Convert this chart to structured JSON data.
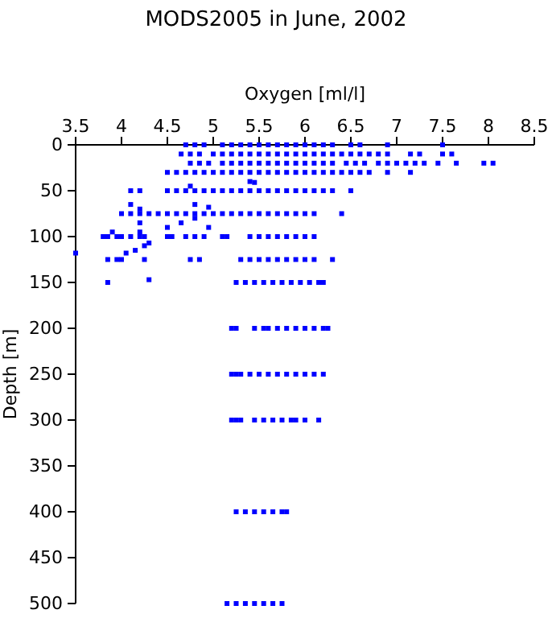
{
  "chart_data": {
    "type": "scatter",
    "title": "MODS2005 in June, 2002",
    "xlabel": "Oxygen [ml/l]",
    "ylabel": "Depth [m]",
    "xlim": [
      3.5,
      8.5
    ],
    "xticks": [
      3.5,
      4,
      4.5,
      5,
      5.5,
      6,
      6.5,
      7,
      7.5,
      8,
      8.5
    ],
    "ylim": [
      500,
      0
    ],
    "yticks": [
      0,
      50,
      100,
      150,
      200,
      250,
      300,
      350,
      400,
      450,
      500
    ],
    "marker": "square",
    "series": [
      {
        "color": "#0000ff",
        "x": [
          4.7,
          4.8,
          4.9,
          5.1,
          5.2,
          5.3,
          5.4,
          5.5,
          5.6,
          5.7,
          5.8,
          5.9,
          6.0,
          6.1,
          6.2,
          6.3,
          6.5,
          6.6,
          6.9,
          7.5
        ],
        "values": [
          0,
          0,
          0,
          0,
          0,
          0,
          0,
          0,
          0,
          0,
          0,
          0,
          0,
          0,
          0,
          0,
          0,
          0,
          0,
          0
        ]
      },
      {
        "color": "#0000ff",
        "x": [
          4.65,
          4.75,
          4.85,
          5.0,
          5.1,
          5.2,
          5.3,
          5.4,
          5.5,
          5.6,
          5.7,
          5.8,
          5.9,
          6.0,
          6.1,
          6.2,
          6.3,
          6.4,
          6.5,
          6.6,
          6.7,
          6.8,
          6.9,
          7.15,
          7.25,
          7.5,
          7.6
        ],
        "values": [
          10,
          10,
          10,
          10,
          10,
          10,
          10,
          10,
          10,
          10,
          10,
          10,
          10,
          10,
          10,
          10,
          10,
          10,
          10,
          10,
          10,
          10,
          10,
          10,
          10,
          10,
          10
        ]
      },
      {
        "color": "#0000ff",
        "x": [
          4.75,
          4.85,
          4.95,
          5.1,
          5.2,
          5.3,
          5.4,
          5.5,
          5.6,
          5.7,
          5.8,
          5.9,
          6.0,
          6.1,
          6.2,
          6.3,
          6.45,
          6.55,
          6.65,
          6.8,
          6.9,
          7.0,
          7.1,
          7.2,
          7.3,
          7.45,
          7.65,
          7.95,
          8.05
        ],
        "values": [
          20,
          20,
          20,
          20,
          20,
          20,
          20,
          20,
          20,
          20,
          20,
          20,
          20,
          20,
          20,
          20,
          20,
          20,
          20,
          20,
          20,
          20,
          20,
          20,
          20,
          20,
          20,
          20,
          20
        ]
      },
      {
        "color": "#0000ff",
        "x": [
          4.5,
          4.6,
          4.7,
          4.8,
          4.9,
          5.0,
          5.1,
          5.2,
          5.3,
          5.4,
          5.5,
          5.6,
          5.7,
          5.8,
          5.9,
          6.0,
          6.1,
          6.2,
          6.3,
          6.4,
          6.5,
          6.6,
          6.7,
          6.9,
          7.15
        ],
        "values": [
          30,
          30,
          30,
          30,
          30,
          30,
          30,
          30,
          30,
          30,
          30,
          30,
          30,
          30,
          30,
          30,
          30,
          30,
          30,
          30,
          30,
          30,
          30,
          30,
          30
        ]
      },
      {
        "color": "#0000ff",
        "x": [
          5.4,
          5.45,
          4.75
        ],
        "values": [
          40,
          41,
          45
        ]
      },
      {
        "color": "#0000ff",
        "x": [
          4.1,
          4.2,
          4.5,
          4.6,
          4.7,
          4.8,
          4.9,
          5.0,
          5.1,
          5.2,
          5.3,
          5.4,
          5.5,
          5.6,
          5.7,
          5.8,
          5.9,
          6.0,
          6.1,
          6.2,
          6.3,
          6.5
        ],
        "values": [
          50,
          50,
          50,
          50,
          50,
          50,
          50,
          50,
          50,
          50,
          50,
          50,
          50,
          50,
          50,
          50,
          50,
          50,
          50,
          50,
          50,
          50
        ]
      },
      {
        "color": "#0000ff",
        "x": [
          4.0,
          4.1,
          4.2,
          4.3,
          4.4,
          4.5,
          4.6,
          4.7,
          4.8,
          4.9,
          5.0,
          5.1,
          5.2,
          5.3,
          5.4,
          5.5,
          5.6,
          5.7,
          5.8,
          5.9,
          6.0,
          6.1,
          6.4
        ],
        "values": [
          75,
          75,
          75,
          75,
          75,
          75,
          75,
          75,
          75,
          75,
          75,
          75,
          75,
          75,
          75,
          75,
          75,
          75,
          75,
          75,
          75,
          75,
          75
        ]
      },
      {
        "color": "#0000ff",
        "x": [
          4.1,
          4.2,
          4.8,
          4.95,
          4.8,
          4.65,
          4.5,
          4.95,
          4.2,
          3.9,
          4.2,
          3.5,
          4.05,
          4.15,
          4.25,
          4.3
        ],
        "values": [
          65,
          70,
          65,
          68,
          80,
          85,
          90,
          90,
          85,
          95,
          95,
          118,
          118,
          115,
          110,
          107
        ]
      },
      {
        "color": "#0000ff",
        "x": [
          3.8,
          3.85,
          3.95,
          4.0,
          4.1,
          4.2,
          4.25,
          4.5,
          4.55,
          4.7,
          4.8,
          4.9,
          5.1,
          5.15,
          5.4,
          5.5,
          5.6,
          5.7,
          5.8,
          5.9,
          6.0,
          6.1
        ],
        "values": [
          100,
          100,
          100,
          100,
          100,
          100,
          100,
          100,
          100,
          100,
          100,
          100,
          100,
          100,
          100,
          100,
          100,
          100,
          100,
          100,
          100,
          100
        ]
      },
      {
        "color": "#0000ff",
        "x": [
          3.85,
          3.95,
          4.0,
          4.25,
          4.75,
          4.85,
          5.3,
          5.4,
          5.5,
          5.6,
          5.7,
          5.8,
          5.9,
          6.0,
          6.1,
          6.3
        ],
        "values": [
          125,
          125,
          125,
          125,
          125,
          125,
          125,
          125,
          125,
          125,
          125,
          125,
          125,
          125,
          125,
          125
        ]
      },
      {
        "color": "#0000ff",
        "x": [
          3.85,
          4.3,
          5.25,
          5.35,
          5.45,
          5.55,
          5.65,
          5.75,
          5.85,
          5.95,
          6.05,
          6.15,
          6.2
        ],
        "values": [
          150,
          147,
          150,
          150,
          150,
          150,
          150,
          150,
          150,
          150,
          150,
          150,
          150
        ]
      },
      {
        "color": "#0000ff",
        "x": [
          5.2,
          5.25,
          5.45,
          5.55,
          5.6,
          5.7,
          5.8,
          5.9,
          6.0,
          6.1,
          6.2,
          6.25
        ],
        "values": [
          200,
          200,
          200,
          200,
          200,
          200,
          200,
          200,
          200,
          200,
          200,
          200
        ]
      },
      {
        "color": "#0000ff",
        "x": [
          5.2,
          5.25,
          5.3,
          5.4,
          5.5,
          5.6,
          5.7,
          5.8,
          5.9,
          6.0,
          6.1,
          6.2
        ],
        "values": [
          250,
          250,
          250,
          250,
          250,
          250,
          250,
          250,
          250,
          250,
          250,
          250
        ]
      },
      {
        "color": "#0000ff",
        "x": [
          5.2,
          5.25,
          5.3,
          5.45,
          5.55,
          5.65,
          5.75,
          5.85,
          5.9,
          6.0,
          6.15
        ],
        "values": [
          300,
          300,
          300,
          300,
          300,
          300,
          300,
          300,
          300,
          300,
          300
        ]
      },
      {
        "color": "#0000ff",
        "x": [
          5.25,
          5.35,
          5.45,
          5.55,
          5.65,
          5.75,
          5.8
        ],
        "values": [
          400,
          400,
          400,
          400,
          400,
          400,
          400
        ]
      },
      {
        "color": "#0000ff",
        "x": [
          5.15,
          5.25,
          5.35,
          5.45,
          5.55,
          5.65,
          5.75
        ],
        "values": [
          500,
          500,
          500,
          500,
          500,
          500,
          500
        ]
      }
    ]
  }
}
